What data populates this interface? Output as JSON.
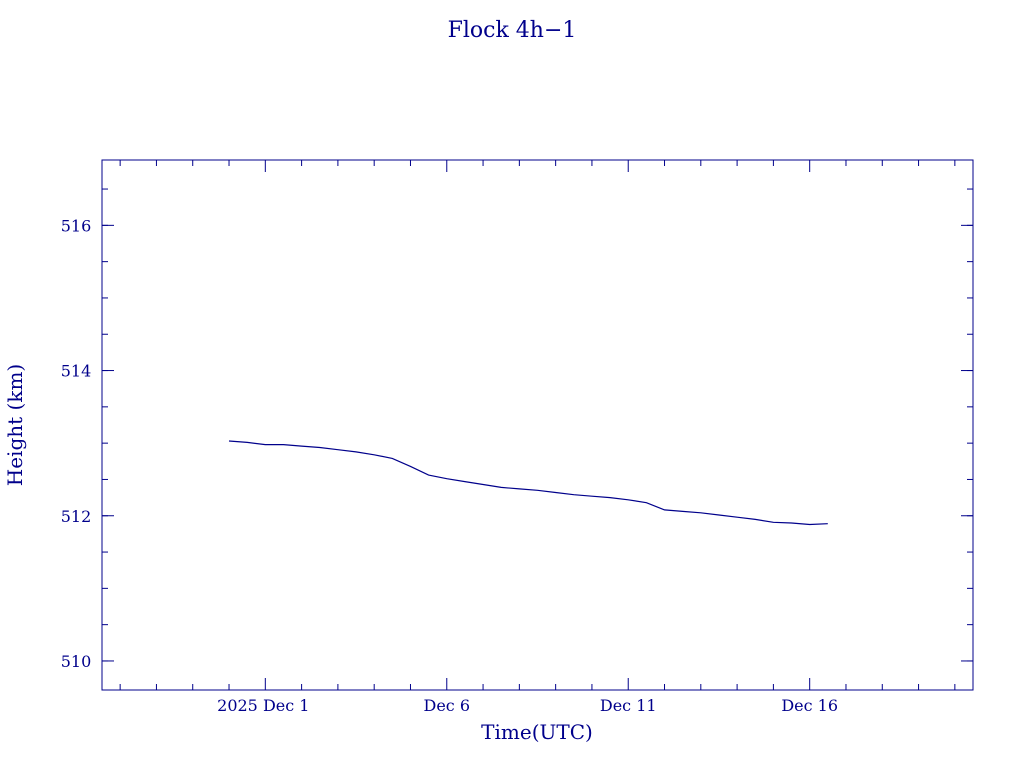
{
  "chart_data": {
    "type": "line",
    "title": "Flock 4h−1",
    "xlabel": "Time(UTC)",
    "ylabel": "Height (km)",
    "xlim": [
      "2025-11-26T12:00",
      "2025-12-20T12:00"
    ],
    "ylim": [
      509.6,
      516.9
    ],
    "x_ticks": [
      {
        "date": "2025-12-01",
        "label": "2025 Dec  1"
      },
      {
        "date": "2025-12-06",
        "label": "Dec  6"
      },
      {
        "date": "2025-12-11",
        "label": "Dec 11"
      },
      {
        "date": "2025-12-16",
        "label": "Dec 16"
      }
    ],
    "x_minor_ticks": [
      "2025-11-27",
      "2025-11-28",
      "2025-11-29",
      "2025-11-30",
      "2025-12-02",
      "2025-12-03",
      "2025-12-04",
      "2025-12-05",
      "2025-12-07",
      "2025-12-08",
      "2025-12-09",
      "2025-12-10",
      "2025-12-12",
      "2025-12-13",
      "2025-12-14",
      "2025-12-15",
      "2025-12-17",
      "2025-12-18",
      "2025-12-19",
      "2025-12-20"
    ],
    "y_ticks": [
      510,
      512,
      514,
      516
    ],
    "y_minor_step": 0.5,
    "grid": false,
    "line_color": "#00008b",
    "series": [
      {
        "x": [
          "2025-11-30T00:00",
          "2025-11-30T12:00",
          "2025-12-01T00:00",
          "2025-12-01T12:00",
          "2025-12-02T00:00",
          "2025-12-02T12:00",
          "2025-12-03T00:00",
          "2025-12-03T12:00",
          "2025-12-04T00:00",
          "2025-12-04T12:00",
          "2025-12-05T00:00",
          "2025-12-05T12:00",
          "2025-12-06T00:00",
          "2025-12-06T12:00",
          "2025-12-07T00:00",
          "2025-12-07T12:00",
          "2025-12-08T00:00",
          "2025-12-08T12:00",
          "2025-12-09T00:00",
          "2025-12-09T12:00",
          "2025-12-10T00:00",
          "2025-12-10T12:00",
          "2025-12-11T00:00",
          "2025-12-11T12:00",
          "2025-12-12T00:00",
          "2025-12-12T12:00",
          "2025-12-13T00:00",
          "2025-12-13T12:00",
          "2025-12-14T00:00",
          "2025-12-14T12:00",
          "2025-12-15T00:00",
          "2025-12-15T12:00",
          "2025-12-16T00:00",
          "2025-12-16T12:00"
        ],
        "y": [
          513.03,
          513.01,
          512.98,
          512.98,
          512.96,
          512.94,
          512.91,
          512.88,
          512.84,
          512.79,
          512.68,
          512.56,
          512.51,
          512.47,
          512.43,
          512.39,
          512.37,
          512.35,
          512.32,
          512.29,
          512.27,
          512.25,
          512.22,
          512.18,
          512.08,
          512.06,
          512.04,
          512.01,
          511.98,
          511.95,
          511.91,
          511.9,
          511.88,
          511.89
        ]
      }
    ]
  }
}
